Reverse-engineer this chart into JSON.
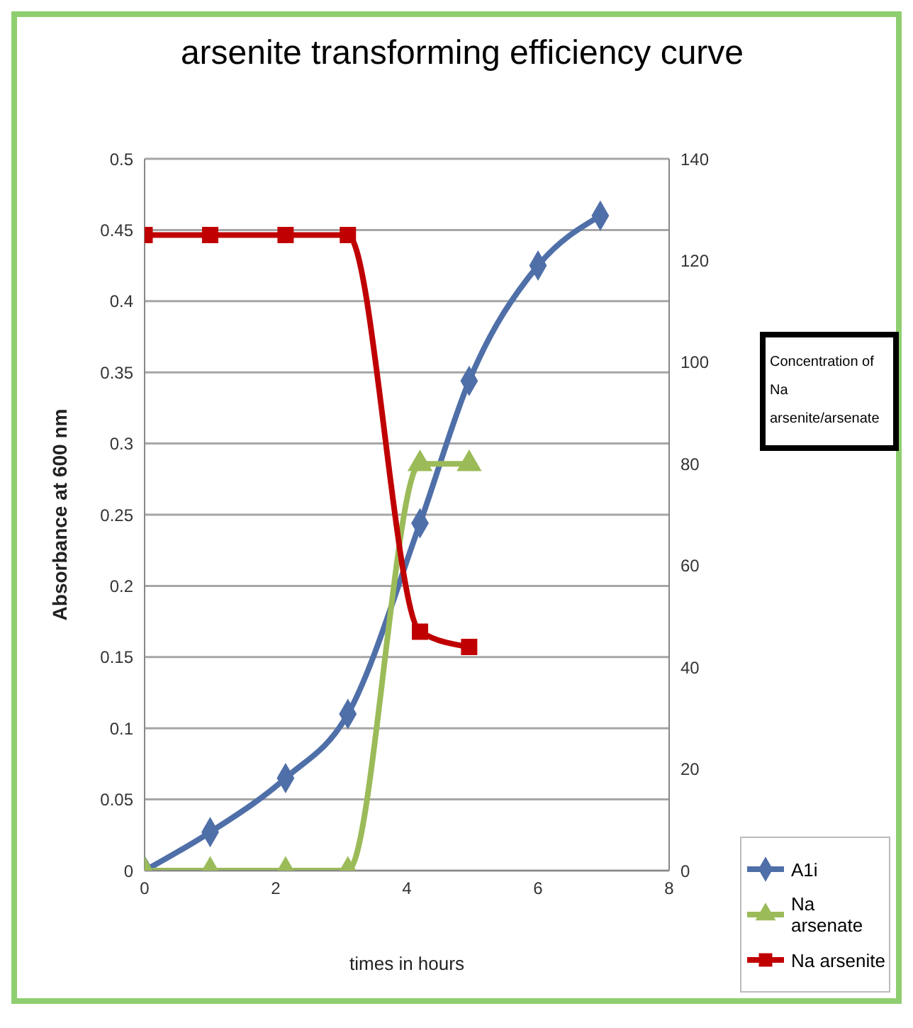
{
  "chart_data": {
    "type": "line",
    "title": "arsenite transforming efficiency curve",
    "xlabel": "times in hours",
    "ylabel": "Absorbance at 600 nm",
    "y2label": "Concentration of Na arsenite/arsenate",
    "xlim": [
      0,
      8
    ],
    "xticks": [
      0,
      2,
      4,
      6,
      8
    ],
    "ylim": [
      0,
      0.5
    ],
    "yticks": [
      0,
      0.05,
      0.1,
      0.15,
      0.2,
      0.25,
      0.3,
      0.35,
      0.4,
      0.45,
      0.5
    ],
    "y2lim": [
      0,
      140
    ],
    "y2ticks": [
      0,
      20,
      40,
      60,
      80,
      100,
      120,
      140
    ],
    "grid": "y",
    "legend": "bottom right",
    "series": [
      {
        "name": "A1i",
        "color": "#4f6fa8",
        "marker": "diamond",
        "x": [
          0,
          1,
          2.15,
          3.1,
          4.2,
          4.95,
          6,
          6.95
        ],
        "values": [
          0,
          0.027,
          0.065,
          0.11,
          0.244,
          0.344,
          0.425,
          0.46
        ]
      },
      {
        "name": "Na arsenate",
        "color": "#9bbb59",
        "marker": "triangle",
        "axis": "y2",
        "x": [
          0,
          1,
          2.15,
          3.1,
          4.2,
          4.95
        ],
        "values": [
          0,
          0,
          0,
          0,
          80,
          80
        ]
      },
      {
        "name": "Na arsenite",
        "color": "#c00000",
        "marker": "square",
        "axis": "y2",
        "x": [
          0,
          1,
          2.15,
          3.1,
          4.2,
          4.95
        ],
        "values": [
          125,
          125,
          125,
          125,
          47,
          44
        ]
      }
    ]
  }
}
